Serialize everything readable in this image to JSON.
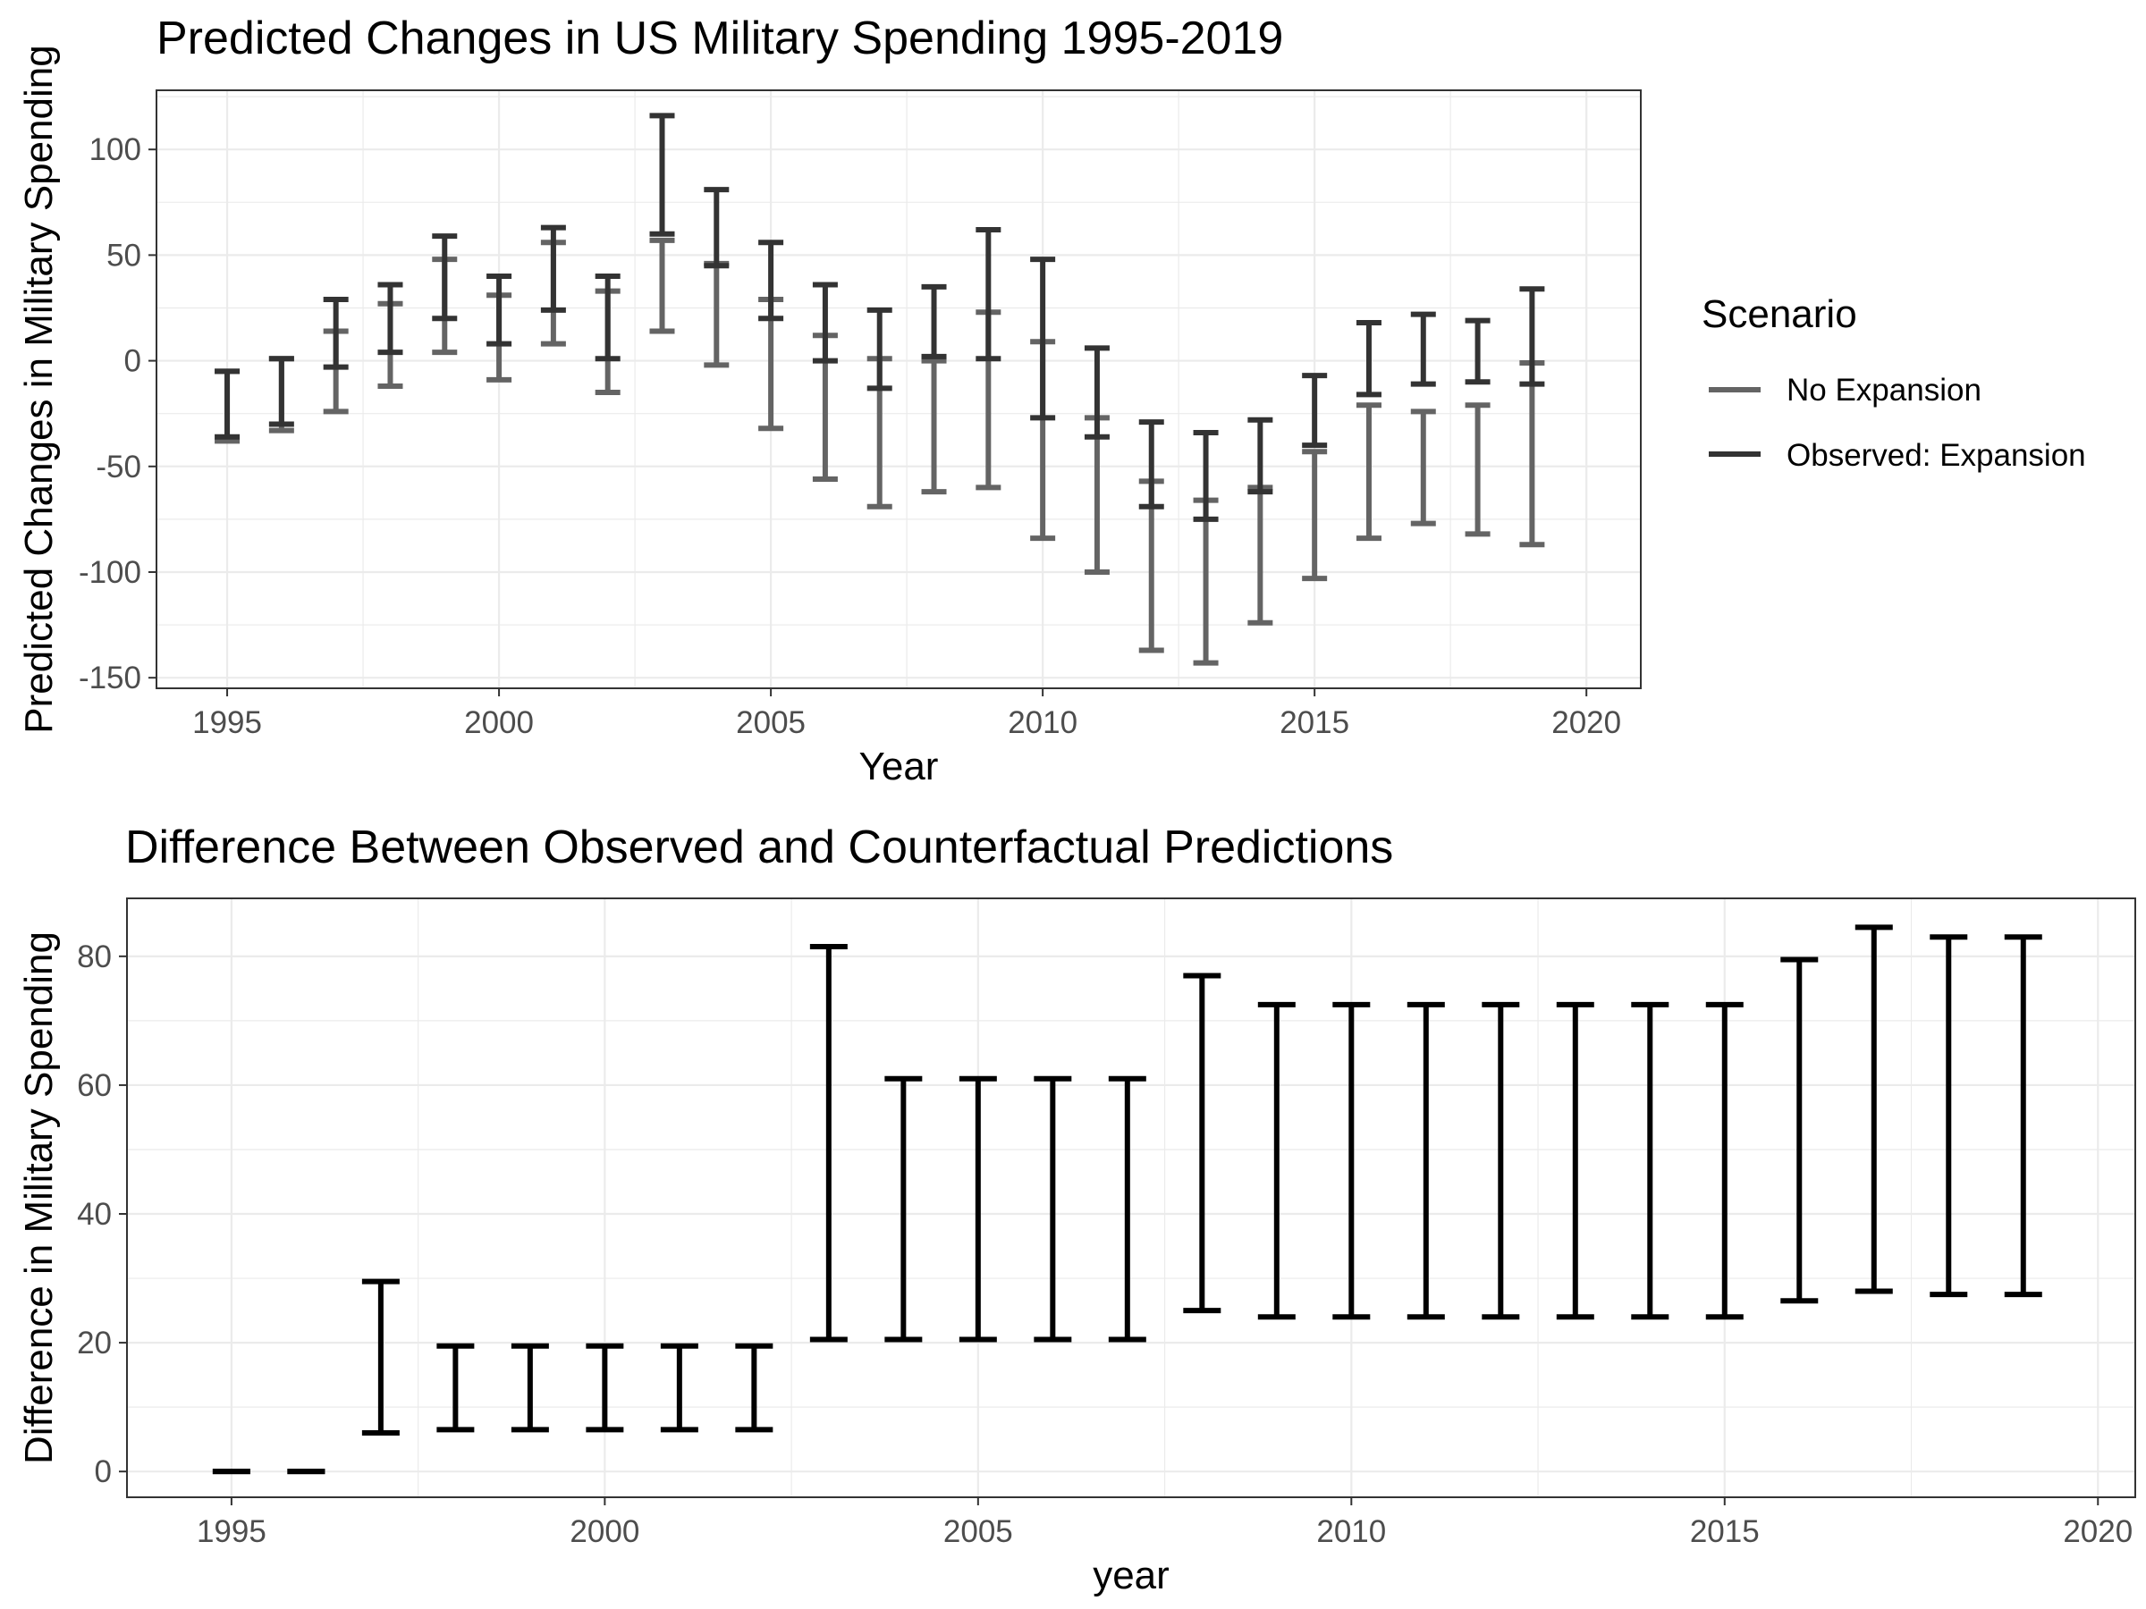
{
  "chart_data": [
    {
      "type": "errorbar",
      "title": "Predicted Changes in US Military Spending 1995-2019",
      "xlabel": "Year",
      "ylabel": "Predicted Changes in Military Spending",
      "xlim": [
        1993.7,
        2021.0
      ],
      "ylim": [
        -155,
        128
      ],
      "xticks": [
        1995,
        2000,
        2005,
        2010,
        2015,
        2020
      ],
      "yticks": [
        100,
        50,
        0,
        -50,
        -100,
        -150
      ],
      "grid": true,
      "legend": {
        "title": "Scenario",
        "position": "right",
        "entries": [
          {
            "name": "No Expansion",
            "color": "#646464"
          },
          {
            "name": "Observed: Expansion",
            "color": "#333333"
          }
        ]
      },
      "series": [
        {
          "name": "No Expansion",
          "color": "#646464",
          "x": [
            1995,
            1996,
            1997,
            1998,
            1999,
            2000,
            2001,
            2002,
            2003,
            2004,
            2005,
            2006,
            2007,
            2008,
            2009,
            2010,
            2011,
            2012,
            2013,
            2014,
            2015,
            2016,
            2017,
            2018,
            2019
          ],
          "lower": [
            -38,
            -33,
            -24,
            -12,
            4,
            -9,
            8,
            -15,
            14,
            -2,
            -32,
            -56,
            -69,
            -62,
            -60,
            -84,
            -100,
            -137,
            -143,
            -124,
            -103,
            -84,
            -77,
            -82,
            -87
          ],
          "upper": [
            -5,
            1,
            14,
            27,
            48,
            31,
            56,
            33,
            57,
            46,
            29,
            12,
            1,
            0,
            23,
            9,
            -27,
            -57,
            -66,
            -60,
            -43,
            -21,
            -24,
            -21,
            -1
          ]
        },
        {
          "name": "Observed: Expansion",
          "color": "#333333",
          "x": [
            1995,
            1996,
            1997,
            1998,
            1999,
            2000,
            2001,
            2002,
            2003,
            2004,
            2005,
            2006,
            2007,
            2008,
            2009,
            2010,
            2011,
            2012,
            2013,
            2014,
            2015,
            2016,
            2017,
            2018,
            2019
          ],
          "lower": [
            -36,
            -30,
            -3,
            4,
            20,
            8,
            24,
            1,
            60,
            45,
            20,
            0,
            -13,
            2,
            1,
            -27,
            -36,
            -69,
            -75,
            -62,
            -40,
            -16,
            -11,
            -10,
            -11
          ],
          "upper": [
            -5,
            1,
            29,
            36,
            59,
            40,
            63,
            40,
            116,
            81,
            56,
            36,
            24,
            35,
            62,
            48,
            6,
            -29,
            -34,
            -28,
            -7,
            18,
            22,
            19,
            34
          ]
        }
      ]
    },
    {
      "type": "errorbar",
      "title": "Difference Between Observed and Counterfactual Predictions",
      "xlabel": "year",
      "ylabel": "Difference in Military Spending",
      "xlim": [
        1993.6,
        2020.5
      ],
      "ylim": [
        -4,
        89
      ],
      "xticks": [
        1995,
        2000,
        2005,
        2010,
        2015,
        2020
      ],
      "yticks": [
        80,
        60,
        40,
        20,
        0
      ],
      "grid": true,
      "series": [
        {
          "color": "#000000",
          "x": [
            1995,
            1996,
            1997,
            1998,
            1999,
            2000,
            2001,
            2002,
            2003,
            2004,
            2005,
            2006,
            2007,
            2008,
            2009,
            2010,
            2011,
            2012,
            2013,
            2014,
            2015,
            2016,
            2017,
            2018,
            2019
          ],
          "lower": [
            0,
            0,
            6,
            6.5,
            6.5,
            6.5,
            6.5,
            6.5,
            20.5,
            20.5,
            20.5,
            20.5,
            20.5,
            25,
            24,
            24,
            24,
            24,
            24,
            24,
            24,
            26.5,
            28,
            27.5,
            27.5
          ],
          "upper": [
            0,
            0,
            29.5,
            19.5,
            19.5,
            19.5,
            19.5,
            19.5,
            81.5,
            61,
            61,
            61,
            61,
            77,
            72.5,
            72.5,
            72.5,
            72.5,
            72.5,
            72.5,
            72.5,
            79.5,
            84.5,
            83,
            83
          ]
        }
      ]
    }
  ]
}
